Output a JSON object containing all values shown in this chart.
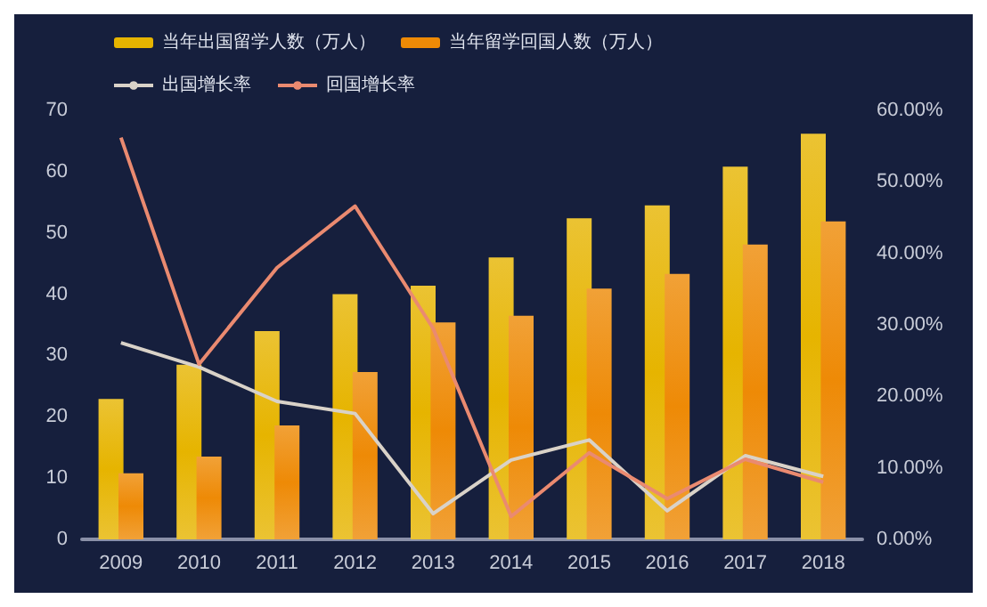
{
  "chart_data": {
    "type": "bar",
    "categories": [
      "2009",
      "2010",
      "2011",
      "2012",
      "2013",
      "2014",
      "2015",
      "2016",
      "2017",
      "2018"
    ],
    "series": [
      {
        "name": "当年出国留学人数（万人）",
        "color": "#e6b400",
        "values": [
          22.9,
          28.5,
          34.0,
          40.0,
          41.4,
          46.0,
          52.4,
          54.5,
          60.8,
          66.2
        ]
      },
      {
        "name": "当年留学回国人数（万人）",
        "color": "#ee8a06",
        "values": [
          10.8,
          13.5,
          18.6,
          27.3,
          35.4,
          36.5,
          40.9,
          43.3,
          48.1,
          51.9
        ]
      },
      {
        "name": "出国增长率",
        "type": "line",
        "axis": "y2",
        "color": "#d9d2c8",
        "values": [
          27.5,
          24.1,
          19.3,
          17.6,
          3.6,
          11.1,
          13.9,
          4.0,
          11.7,
          8.8
        ]
      },
      {
        "name": "回国增长率",
        "type": "line",
        "axis": "y2",
        "color": "#ea8a70",
        "values": [
          56.2,
          24.5,
          38.0,
          46.6,
          29.5,
          3.2,
          12.1,
          5.7,
          11.2,
          8.0
        ]
      }
    ],
    "ylim": [
      0,
      70
    ],
    "yticks": [
      0,
      10,
      20,
      30,
      40,
      50,
      60,
      70
    ],
    "y2lim": [
      0,
      60
    ],
    "y2ticks": [
      {
        "value": 0,
        "label": "0.00%"
      },
      {
        "value": 10,
        "label": "10.00%"
      },
      {
        "value": 20,
        "label": "20.00%"
      },
      {
        "value": 30,
        "label": "30.00%"
      },
      {
        "value": 40,
        "label": "40.00%"
      },
      {
        "value": 50,
        "label": "50.00%"
      },
      {
        "value": 60,
        "label": "60.00%"
      }
    ],
    "grid": false,
    "legend": "top left",
    "marker": "none",
    "line_style": "solid"
  }
}
